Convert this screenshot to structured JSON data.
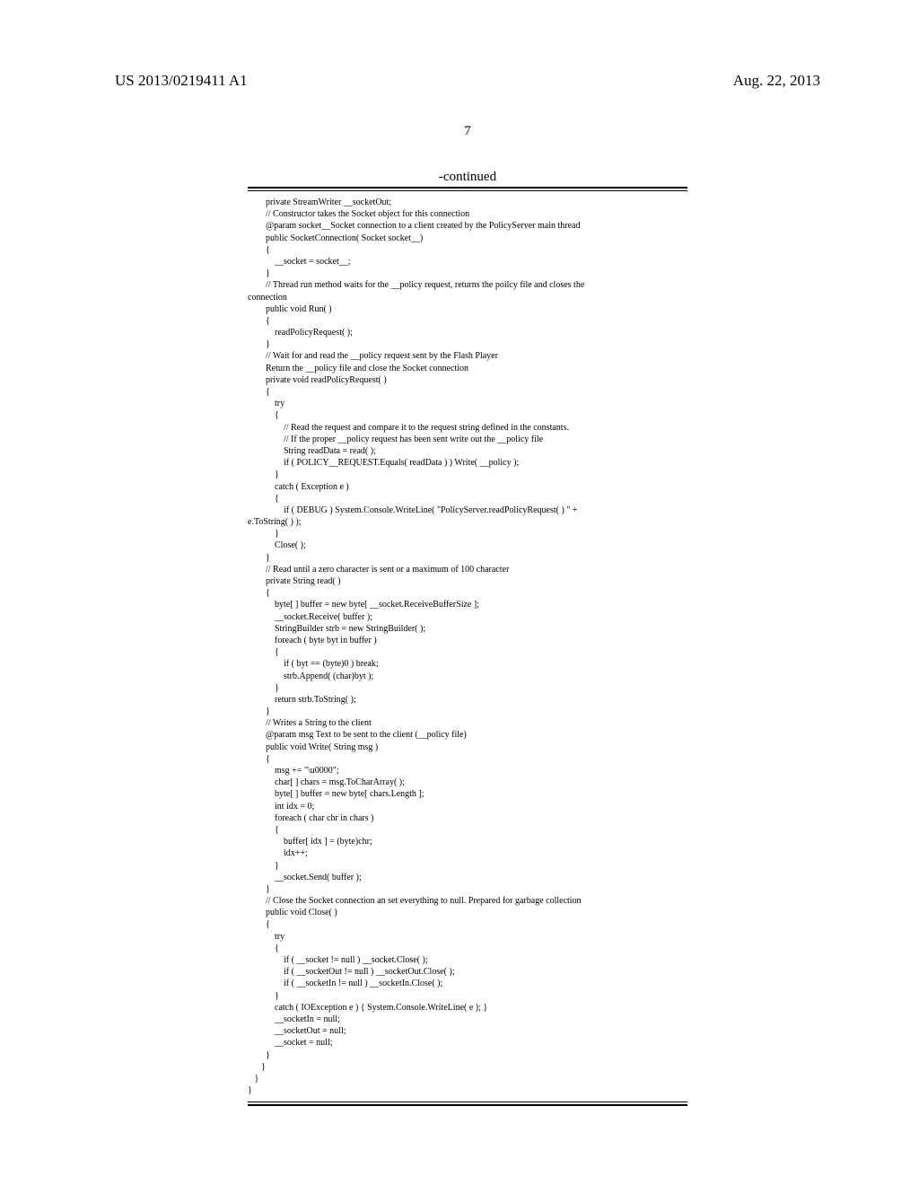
{
  "header": {
    "pub_number": "US 2013/0219411 A1",
    "pub_date": "Aug. 22, 2013"
  },
  "page_number": "7",
  "continued_label": "-continued",
  "code": "        private StreamWriter __socketOut;\n        // Constructor takes the Socket object for this connection\n        @param socket__Socket connection to a client created by the PolicyServer main thread\n        public SocketConnection( Socket socket__)\n        {\n            __socket = socket__;\n        }\n        // Thread run method waits for the __policy request, returns the poilcy file and closes the\nconnection\n        public void Run( )\n        {\n            readPolicyRequest( );\n        }\n        // Wait for and read the __policy request sent by the Flash Player\n        Return the __policy file and close the Socket connection\n        private void readPolicyRequest( )\n        {\n            try\n            {\n                // Read the request and compare it to the request string defined in the constants.\n                // If the proper __policy request has been sent write out the __policy file\n                String readData = read( );\n                if ( POLICY__REQUEST.Equals( readData ) ) Write( __policy );\n            }\n            catch ( Exception e )\n            {\n                if ( DEBUG ) System.Console.WriteLine( \"PolicyServer.readPolicyRequest( ) \" +\ne.ToString( ) );\n            }\n            Close( );\n        }\n        // Read until a zero character is sent or a maximum of 100 character\n        private String read( )\n        {\n            byte[ ] buffer = new byte[ __socket.ReceiveBufferSize ];\n            __socket.Receive( buffer );\n            StringBuilder strb = new StringBuilder( );\n            foreach ( byte byt in buffer )\n            {\n                if ( byt == (byte)0 ) break;\n                strb.Append( (char)byt );\n            }\n            return strb.ToString( );\n        }\n        // Writes a String to the client\n        @param msg Text to be sent to the client (__policy file)\n        public void Write( String msg )\n        {\n            msg += \"\\u0000\";\n            char[ ] chars = msg.ToCharArray( );\n            byte[ ] buffer = new byte[ chars.Length ];\n            int idx = 0;\n            foreach ( char chr in chars )\n            {\n                buffer[ idx ] = (byte)chr;\n                idx++;\n            }\n            __socket.Send( buffer );\n        }\n        // Close the Socket connection an set everything to null. Prepared for garbage collection\n        public void Close( )\n        {\n            try\n            {\n                if ( __socket != null ) __socket.Close( );\n                if ( __socketOut != null ) __socketOut.Close( );\n                if ( __socketIn != null ) __socketIn.Close( );\n            }\n            catch ( IOException e ) { System.Console.WriteLine( e ); }\n            __socketIn = null;\n            __socketOut = null;\n            __socket = null;\n        }\n      }\n   }\n}"
}
